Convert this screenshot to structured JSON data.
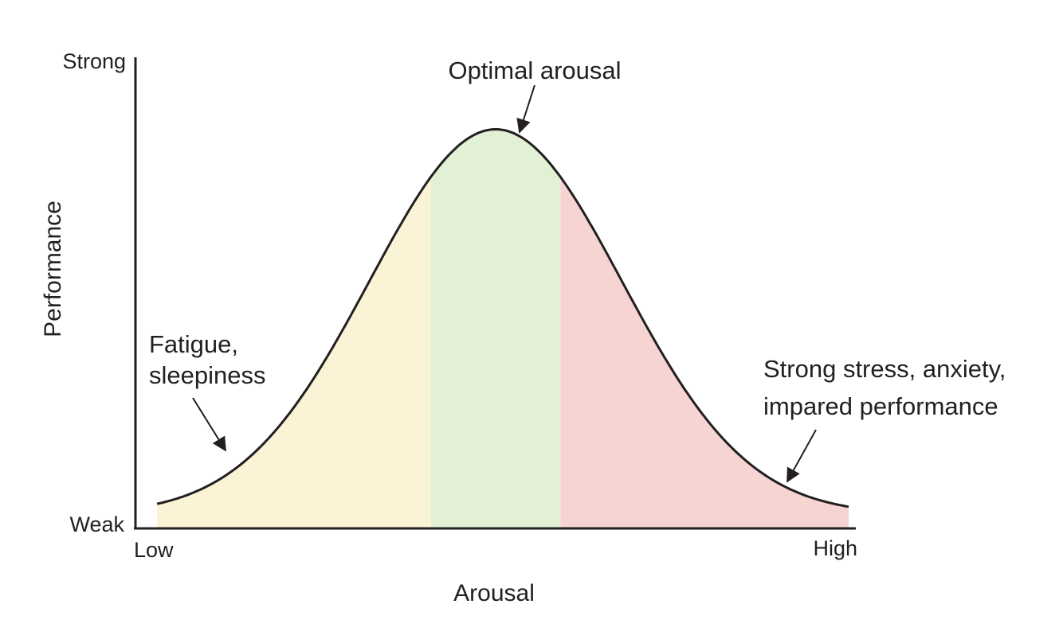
{
  "chart_data": {
    "type": "area",
    "title": "",
    "xlabel": "Arousal",
    "ylabel": "Performance",
    "x_tick_labels": {
      "min": "Low",
      "max": "High"
    },
    "y_tick_labels": {
      "min": "Weak",
      "max": "Strong"
    },
    "xlim": [
      0,
      1
    ],
    "ylim": [
      0,
      1
    ],
    "grid": false,
    "legend": "none",
    "curve": {
      "shape": "bell",
      "peak_x": 0.5,
      "peak_y": 0.85,
      "base_y": 0.03
    },
    "regions": [
      {
        "x_range": [
          0.03,
          0.41
        ],
        "color": "#fbf3d5"
      },
      {
        "x_range": [
          0.41,
          0.59
        ],
        "color": "#e2f0d6"
      },
      {
        "x_range": [
          0.59,
          0.99
        ],
        "color": "#f6d4d2"
      }
    ],
    "annotations": [
      {
        "lines": [
          "Optimal arousal"
        ],
        "target_x": 0.5
      },
      {
        "lines": [
          "Fatigue,",
          "sleepiness"
        ],
        "target_x": 0.13
      },
      {
        "lines": [
          "Strong stress, anxiety,",
          "impared performance"
        ],
        "target_x": 0.9
      }
    ]
  }
}
